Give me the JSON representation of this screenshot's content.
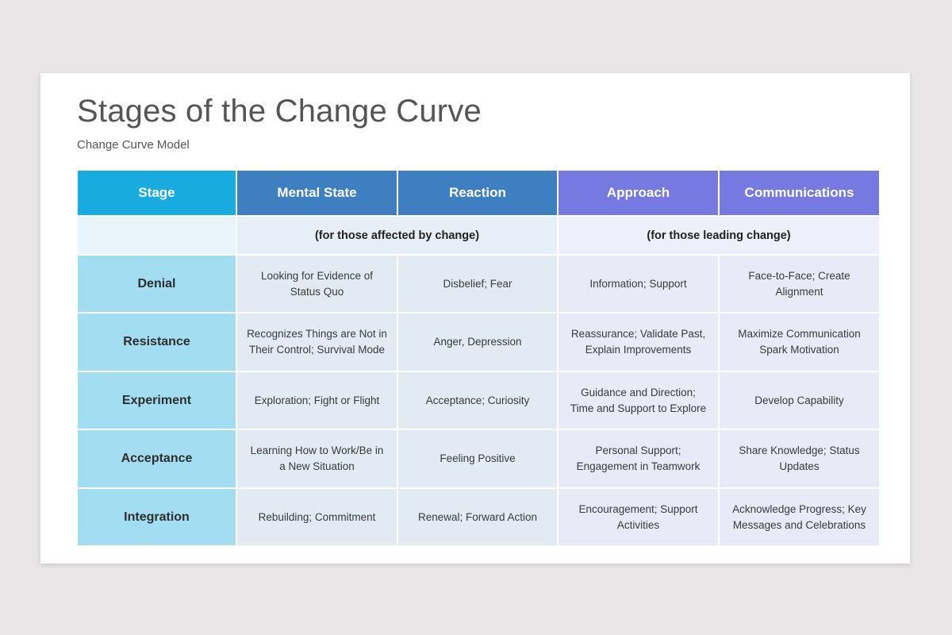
{
  "slide": {
    "title": "Stages of the Change Curve",
    "subtitle": "Change Curve Model"
  },
  "colors": {
    "stage_header": "#17abe0",
    "affected_header": "#3d7fc0",
    "leading_header": "#7579e0",
    "stage_cell": "#a3ddf2",
    "affected_cell": "#e2ebf4",
    "leading_cell": "#e8eaf8"
  },
  "table": {
    "headers": [
      "Stage",
      "Mental State",
      "Reaction",
      "Approach",
      "Communications"
    ],
    "group_labels": {
      "affected": "(for those affected by change)",
      "leading": "(for those leading change)"
    },
    "rows": [
      {
        "stage": "Denial",
        "mental_state": "Looking for Evidence of Status Quo",
        "reaction": "Disbelief; Fear",
        "approach": "Information; Support",
        "communications": "Face-to-Face; Create Alignment"
      },
      {
        "stage": "Resistance",
        "mental_state": "Recognizes Things are Not in Their Control; Survival Mode",
        "reaction": "Anger, Depression",
        "approach": "Reassurance; Validate Past, Explain Improvements",
        "communications": "Maximize Communication Spark Motivation"
      },
      {
        "stage": "Experiment",
        "mental_state": "Exploration; Fight or Flight",
        "reaction": "Acceptance; Curiosity",
        "approach": "Guidance and Direction; Time and Support to Explore",
        "communications": "Develop Capability"
      },
      {
        "stage": "Acceptance",
        "mental_state": "Learning How to Work/Be in a New Situation",
        "reaction": "Feeling Positive",
        "approach": "Personal Support; Engagement in Teamwork",
        "communications": "Share Knowledge; Status Updates"
      },
      {
        "stage": "Integration",
        "mental_state": "Rebuilding; Commitment",
        "reaction": "Renewal; Forward Action",
        "approach": "Encouragement; Support Activities",
        "communications": "Acknowledge Progress; Key Messages and Celebrations"
      }
    ]
  }
}
